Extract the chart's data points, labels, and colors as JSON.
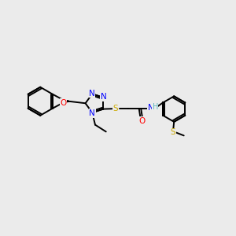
{
  "background_color": "#ebebeb",
  "bond_color": "#000000",
  "N_color": "#0000ff",
  "O_color": "#ff0000",
  "S_color": "#ccaa00",
  "H_color": "#5eb8c0",
  "figsize": [
    3.0,
    3.0
  ],
  "dpi": 100,
  "xlim": [
    0,
    12
  ],
  "ylim": [
    0,
    10
  ]
}
